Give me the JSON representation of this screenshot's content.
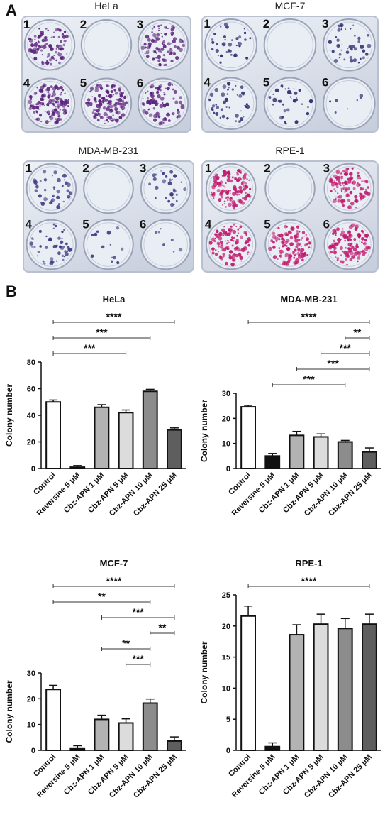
{
  "panel_a": {
    "letter": "A",
    "well_labels": [
      "1",
      "2",
      "3",
      "4",
      "5",
      "6"
    ],
    "plates": [
      {
        "title": "HeLa",
        "stain": "#5a1f7a",
        "density": [
          0.7,
          0.0,
          0.65,
          0.9,
          0.95,
          0.6
        ]
      },
      {
        "title": "MCF-7",
        "stain": "#2c2a6e",
        "density": [
          0.25,
          0.0,
          0.3,
          0.3,
          0.25,
          0.05
        ]
      },
      {
        "title": "MDA-MB-231",
        "stain": "#3a3580",
        "density": [
          0.3,
          0.0,
          0.2,
          0.3,
          0.1,
          0.05
        ]
      },
      {
        "title": "RPE-1",
        "stain": "#c0156a",
        "density": [
          0.85,
          0.0,
          0.8,
          0.8,
          0.85,
          0.8
        ]
      }
    ]
  },
  "panel_b": {
    "letter": "B"
  },
  "chart_data": [
    {
      "type": "bar",
      "title": "HeLa",
      "ylabel": "Colony number",
      "xlabel": "",
      "ylim": [
        0,
        80
      ],
      "yticks": [
        "0",
        "20",
        "40",
        "60",
        "80"
      ],
      "categories": [
        "Control",
        "Reversine 5 μM",
        "Cbz-APN 1 μM",
        "Cbz-APN 5 μM",
        "Cbz-APN 10 μM",
        "Cbz-APN 25 μM"
      ],
      "values": [
        50,
        1,
        46,
        42,
        58,
        29
      ],
      "errors": [
        1.5,
        1.2,
        2,
        2,
        1.5,
        1.5
      ],
      "bar_colors": [
        "#ffffff",
        "#111111",
        "#b3b3b3",
        "#dcdcdc",
        "#8c8c8c",
        "#5e5e5e"
      ],
      "significance": [
        {
          "from": 0,
          "to": 5,
          "label": "****"
        },
        {
          "from": 0,
          "to": 4,
          "label": "***"
        },
        {
          "from": 0,
          "to": 3,
          "label": "***"
        }
      ]
    },
    {
      "type": "bar",
      "title": "MDA-MB-231",
      "ylabel": "Colony number",
      "xlabel": "",
      "ylim": [
        0,
        30
      ],
      "yticks": [
        "0",
        "10",
        "20",
        "30"
      ],
      "categories": [
        "Control",
        "Reversine 5 μM",
        "Cbz-APN 1 μM",
        "Cbz-APN 5 μM",
        "Cbz-APN 10 μM",
        "Cbz-APN 25 μM"
      ],
      "values": [
        24.6,
        5,
        13.2,
        12.6,
        10.6,
        6.6
      ],
      "errors": [
        0.6,
        1.0,
        1.6,
        1.2,
        0.6,
        1.6
      ],
      "bar_colors": [
        "#ffffff",
        "#111111",
        "#b3b3b3",
        "#dcdcdc",
        "#8c8c8c",
        "#5e5e5e"
      ],
      "significance": [
        {
          "from": 0,
          "to": 5,
          "label": "****"
        },
        {
          "from": 4,
          "to": 5,
          "label": "**"
        },
        {
          "from": 3,
          "to": 5,
          "label": "***"
        },
        {
          "from": 2,
          "to": 5,
          "label": "***"
        },
        {
          "from": 1,
          "to": 4,
          "label": "***"
        }
      ]
    },
    {
      "type": "bar",
      "title": "MCF-7",
      "ylabel": "Colony number",
      "xlabel": "",
      "ylim": [
        0,
        30
      ],
      "yticks": [
        "0",
        "10",
        "20",
        "30"
      ],
      "categories": [
        "Control",
        "Reversine 5 μM",
        "Cbz-APN 1 μM",
        "Cbz-APN 5 μM",
        "Cbz-APN 10 μM",
        "Cbz-APN 25 μM"
      ],
      "values": [
        23.6,
        0.6,
        12,
        10.6,
        18.3,
        3.6
      ],
      "errors": [
        1.6,
        1.2,
        1.6,
        1.6,
        1.6,
        1.6
      ],
      "bar_colors": [
        "#ffffff",
        "#111111",
        "#b3b3b3",
        "#dcdcdc",
        "#8c8c8c",
        "#5e5e5e"
      ],
      "significance": [
        {
          "from": 0,
          "to": 5,
          "label": "****"
        },
        {
          "from": 0,
          "to": 4,
          "label": "**"
        },
        {
          "from": 2,
          "to": 5,
          "label": "***"
        },
        {
          "from": 4,
          "to": 5,
          "label": "**"
        },
        {
          "from": 2,
          "to": 4,
          "label": "**"
        },
        {
          "from": 3,
          "to": 4,
          "label": "***"
        }
      ]
    },
    {
      "type": "bar",
      "title": "RPE-1",
      "ylabel": "Colony number",
      "xlabel": "",
      "ylim": [
        0,
        25
      ],
      "yticks": [
        "0",
        "5",
        "10",
        "15",
        "20",
        "25"
      ],
      "categories": [
        "Control",
        "Reversine 5 μM",
        "Cbz-APN 1 μM",
        "Cbz-APN 5 μM",
        "Cbz-APN 10 μM",
        "Cbz-APN 25 μM"
      ],
      "values": [
        21.6,
        0.6,
        18.6,
        20.3,
        19.6,
        20.3
      ],
      "errors": [
        1.6,
        0.6,
        1.6,
        1.6,
        1.6,
        1.6
      ],
      "bar_colors": [
        "#ffffff",
        "#111111",
        "#b3b3b3",
        "#dcdcdc",
        "#8c8c8c",
        "#5e5e5e"
      ],
      "significance": [
        {
          "from": 0,
          "to": 5,
          "label": "****"
        }
      ]
    }
  ]
}
